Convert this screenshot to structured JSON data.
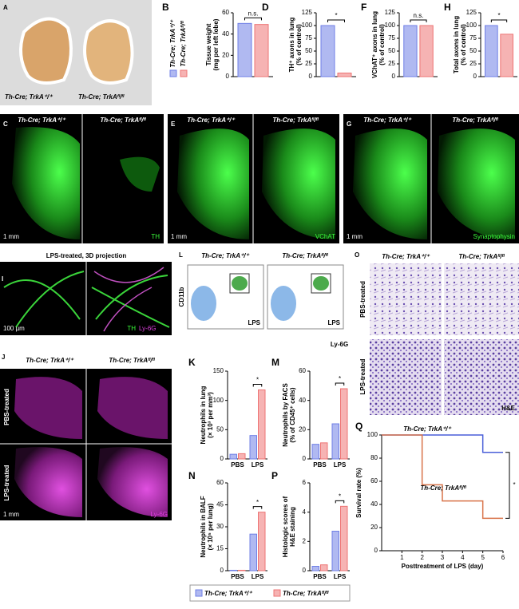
{
  "panels": [
    {
      "texts": [
        "A",
        "Th-Cre; TrkA⁺/⁺",
        "Th-Cre; TrkAᶠˡ/ᶠˡ"
      ]
    },
    {
      "texts": [
        "C",
        "Th-Cre; TrkA⁺/⁺",
        "Th-Cre; TrkAᶠˡ/ᶠˡ",
        "1 mm",
        "TH"
      ]
    },
    {
      "texts": [
        "E",
        "Th-Cre; TrkA⁺/⁺",
        "Th-Cre; TrkAᶠˡ/ᶠˡ",
        "1 mm",
        "VChAT"
      ]
    },
    {
      "texts": [
        "G",
        "Th-Cre; TrkA⁺/⁺",
        "Th-Cre; TrkAᶠˡ/ᶠˡ",
        "1 mm",
        "Synaptophysin"
      ]
    },
    {
      "texts": [
        "I",
        "LPS-treated, 3D projection",
        "100 µm",
        "TH",
        "Ly-6G"
      ]
    },
    {
      "texts": [
        "L",
        "Th-Cre; TrkA⁺/⁺",
        "Th-Cre; TrkAᶠˡ/ᶠˡ",
        "CD11b",
        "Ly-6G",
        "LPS",
        "LPS"
      ]
    },
    {
      "texts": [
        "O",
        "Th-Cre; TrkA⁺/⁺",
        "Th-Cre; TrkAᶠˡ/ᶠˡ",
        "PBS-treated",
        "LPS-treated",
        "H&E"
      ]
    },
    {
      "texts": [
        "J",
        "Th-Cre; TrkA⁺/⁺",
        "Th-Cre; TrkAᶠˡ/ᶠˡ",
        "PBS-treated",
        "LPS-treated",
        "1 mm",
        "Ly-6G"
      ]
    }
  ],
  "chart_data": [
    {
      "type": "bar",
      "panel": "B",
      "ylabel": [
        "Tissue weight",
        "(mg per left lobe)"
      ],
      "ylim": [
        0,
        60
      ],
      "yticks": [
        0,
        20,
        40,
        60
      ],
      "annotation": "n.s.",
      "series": [
        {
          "name": "Th-Cre; TrkA⁺/⁺",
          "color": "#6f7fe6",
          "values": [
            50
          ]
        },
        {
          "name": "Th-Cre; TrkAᶠˡ/ᶠˡ",
          "color": "#ee7474",
          "values": [
            49
          ]
        }
      ]
    },
    {
      "type": "bar",
      "panel": "D",
      "ylabel": [
        "TH⁺ axons in lung",
        "(% of control)"
      ],
      "ylim": [
        0,
        125
      ],
      "yticks": [
        0,
        25,
        50,
        75,
        100,
        125
      ],
      "annotation": "*",
      "series": [
        {
          "name": "Th-Cre; TrkA⁺/⁺",
          "color": "#6f7fe6",
          "values": [
            100
          ]
        },
        {
          "name": "Th-Cre; TrkAᶠˡ/ᶠˡ",
          "color": "#ee7474",
          "values": [
            7
          ]
        }
      ]
    },
    {
      "type": "bar",
      "panel": "F",
      "ylabel": [
        "VChAT⁺ axons in lung",
        "(% of control)"
      ],
      "ylim": [
        0,
        125
      ],
      "yticks": [
        0,
        25,
        50,
        75,
        100,
        125
      ],
      "annotation": "n.s.",
      "series": [
        {
          "name": "Th-Cre; TrkA⁺/⁺",
          "color": "#6f7fe6",
          "values": [
            100
          ]
        },
        {
          "name": "Th-Cre; TrkAᶠˡ/ᶠˡ",
          "color": "#ee7474",
          "values": [
            100
          ]
        }
      ]
    },
    {
      "type": "bar",
      "panel": "H",
      "ylabel": [
        "Total axons in lung",
        "(% of control)"
      ],
      "ylim": [
        0,
        125
      ],
      "yticks": [
        0,
        25,
        50,
        75,
        100,
        125
      ],
      "annotation": "*",
      "series": [
        {
          "name": "Th-Cre; TrkA⁺/⁺",
          "color": "#6f7fe6",
          "values": [
            100
          ]
        },
        {
          "name": "Th-Cre; TrkAᶠˡ/ᶠˡ",
          "color": "#ee7474",
          "values": [
            83
          ]
        }
      ]
    },
    {
      "type": "bar",
      "panel": "K",
      "ylabel": [
        "Neutrophils in lung",
        "(× 10³ per mm³)"
      ],
      "categories": [
        "PBS",
        "LPS"
      ],
      "ylim": [
        0,
        150
      ],
      "yticks": [
        0,
        50,
        100,
        150
      ],
      "annotation": "*",
      "series": [
        {
          "name": "Th-Cre; TrkA⁺/⁺",
          "color": "#6f7fe6",
          "values": [
            8,
            40
          ]
        },
        {
          "name": "Th-Cre; TrkAᶠˡ/ᶠˡ",
          "color": "#ee7474",
          "values": [
            9,
            118
          ]
        }
      ]
    },
    {
      "type": "bar",
      "panel": "M",
      "ylabel": [
        "Neutrophils by FACS",
        "(% of CD45⁺ cells)"
      ],
      "categories": [
        "PBS",
        "LPS"
      ],
      "ylim": [
        0,
        60
      ],
      "yticks": [
        0,
        20,
        40,
        60
      ],
      "annotation": "*",
      "series": [
        {
          "name": "Th-Cre; TrkA⁺/⁺",
          "color": "#6f7fe6",
          "values": [
            10,
            24
          ]
        },
        {
          "name": "Th-Cre; TrkAᶠˡ/ᶠˡ",
          "color": "#ee7474",
          "values": [
            11,
            48
          ]
        }
      ]
    },
    {
      "type": "bar",
      "panel": "N",
      "ylabel": [
        "Neutrophils in BALF",
        "(× 10⁵ per lung)"
      ],
      "categories": [
        "PBS",
        "LPS"
      ],
      "ylim": [
        0,
        60
      ],
      "yticks": [
        0,
        15,
        30,
        45,
        60
      ],
      "annotation": "*",
      "series": [
        {
          "name": "Th-Cre; TrkA⁺/⁺",
          "color": "#6f7fe6",
          "values": [
            0.3,
            25
          ]
        },
        {
          "name": "Th-Cre; TrkAᶠˡ/ᶠˡ",
          "color": "#ee7474",
          "values": [
            0.3,
            40
          ]
        }
      ]
    },
    {
      "type": "bar",
      "panel": "P",
      "ylabel": [
        "Histologic scores of",
        "H&E staining"
      ],
      "categories": [
        "PBS",
        "LPS"
      ],
      "ylim": [
        0,
        6
      ],
      "yticks": [
        0,
        2,
        4,
        6
      ],
      "annotation": "*",
      "series": [
        {
          "name": "Th-Cre; TrkA⁺/⁺",
          "color": "#6f7fe6",
          "values": [
            0.3,
            2.7
          ]
        },
        {
          "name": "Th-Cre; TrkAᶠˡ/ᶠˡ",
          "color": "#ee7474",
          "values": [
            0.4,
            4.4
          ]
        }
      ]
    },
    {
      "type": "line",
      "panel": "Q",
      "ylabel": [
        "Survival rate (%)"
      ],
      "xlabel": "Posttreatment of LPS (day)",
      "xlim": [
        0,
        6
      ],
      "xticks": [
        1,
        2,
        3,
        4,
        5,
        6
      ],
      "ylim": [
        0,
        100
      ],
      "yticks": [
        0,
        20,
        40,
        60,
        80,
        100
      ],
      "annotation": "*",
      "series": [
        {
          "name": "Th-Cre; TrkA⁺/⁺",
          "color": "#4a5fd8",
          "x": [
            0,
            5,
            5,
            6
          ],
          "values": [
            100,
            100,
            85,
            85
          ]
        },
        {
          "name": "Th-Cre; TrkAᶠˡ/ᶠˡ",
          "color": "#d9744a",
          "x": [
            0,
            2,
            2,
            3,
            3,
            5,
            5,
            6
          ],
          "values": [
            100,
            100,
            57,
            57,
            43,
            43,
            28,
            28
          ]
        }
      ]
    }
  ]
}
